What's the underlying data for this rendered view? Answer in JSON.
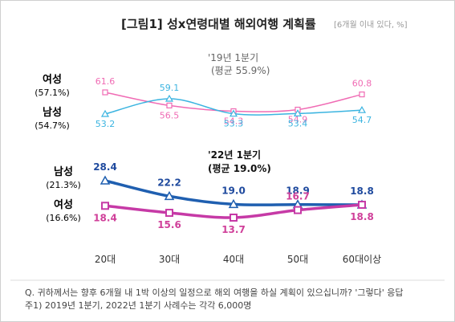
{
  "title": "[그림1] 성x연령대별 해외여행 계획률",
  "title_note": "[6개월 이내 있다, %]",
  "colors": {
    "female_2019": "#f06bb4",
    "male_2019": "#3bb4e0",
    "male_2022": "#1f5fb0",
    "female_2022": "#c63aa6",
    "male_label_2022": "#1f4a9e",
    "female_label_2022": "#d0409a"
  },
  "chart_data": {
    "type": "line",
    "categories": [
      "20대",
      "30대",
      "40대",
      "50대",
      "60대이상"
    ],
    "panels": [
      {
        "period_label": "'19년 1분기",
        "average_label": "(평균 55.9%)",
        "series": [
          {
            "name": "여성",
            "average": "(57.1%)",
            "values": [
              61.6,
              56.5,
              54.3,
              54.9,
              60.8
            ],
            "labels": [
              "61.6",
              "56.5",
              "54.3",
              "54.9",
              "60.8"
            ]
          },
          {
            "name": "남성",
            "average": "(54.7%)",
            "values": [
              53.2,
              59.1,
              53.3,
              53.4,
              54.7
            ],
            "labels": [
              "53.2",
              "59.1",
              "53.3",
              "53.4",
              "54.7"
            ]
          }
        ]
      },
      {
        "period_label": "'22년 1분기",
        "average_label": "(평균 19.0%)",
        "series": [
          {
            "name": "남성",
            "average": "(21.3%)",
            "values": [
              28.4,
              22.2,
              19.0,
              18.9,
              18.8
            ],
            "labels": [
              "28.4",
              "22.2",
              "19.0",
              "18.9",
              "18.8"
            ]
          },
          {
            "name": "여성",
            "average": "(16.6%)",
            "values": [
              18.4,
              15.6,
              13.7,
              16.7,
              18.8
            ],
            "labels": [
              "18.4",
              "15.6",
              "13.7",
              "16.7",
              "18.8"
            ]
          }
        ]
      }
    ]
  },
  "notes": [
    "Q. 귀하께서는 향후 6개월 내 1박 이상의 일정으로 해외 여행을 하실 계획이 있으십니까? '그렇다' 응답",
    "주1) 2019년 1분기, 2022년 1분기 사례수는 각각 6,000명"
  ]
}
